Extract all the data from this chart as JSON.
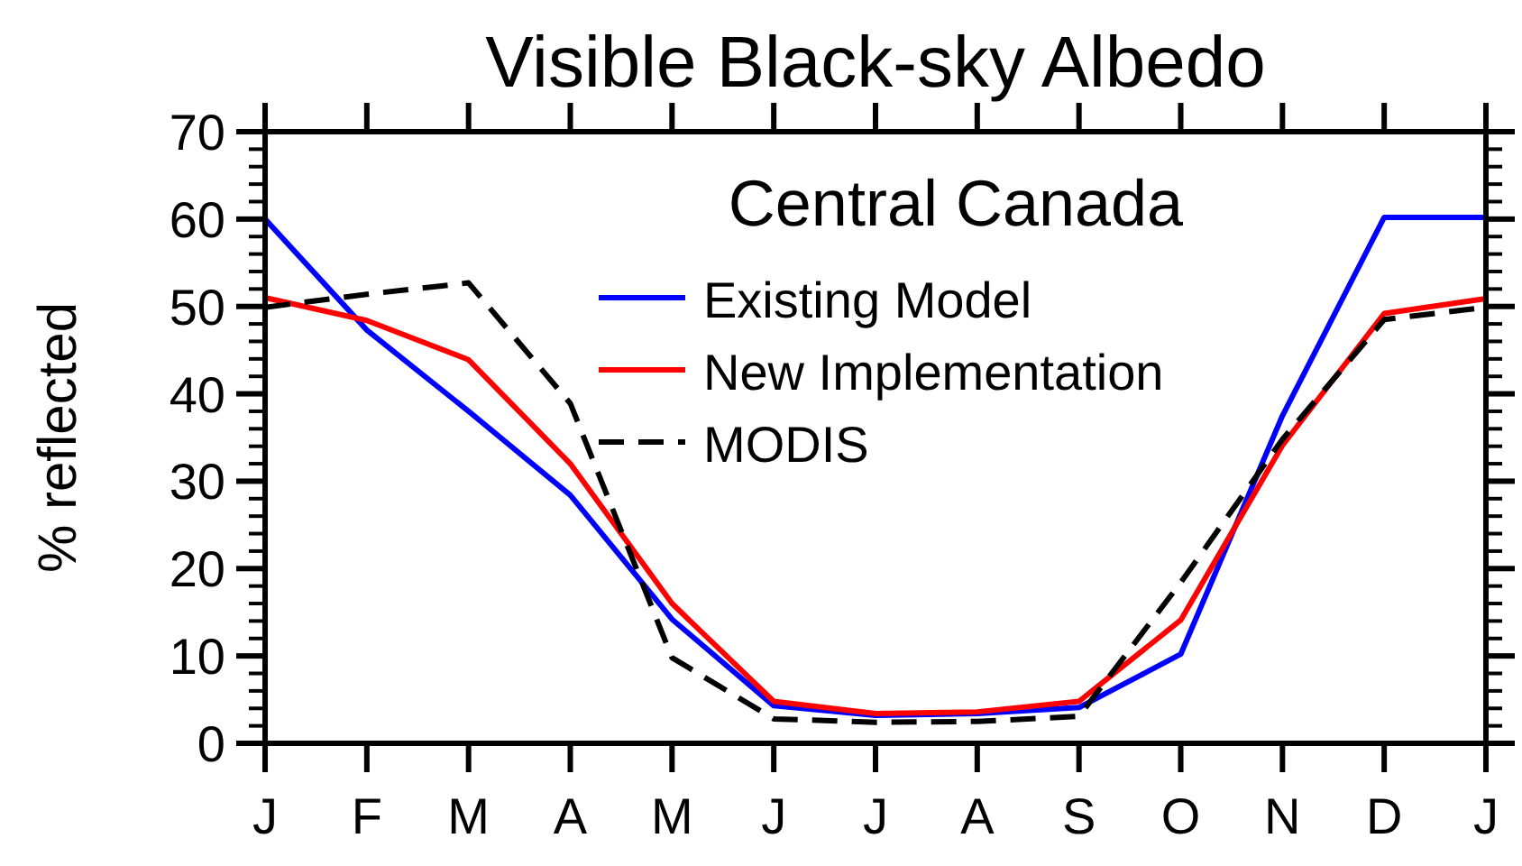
{
  "chart_data": {
    "type": "line",
    "title": "Visible Black-sky Albedo",
    "subtitle": "Central Canada",
    "ylabel": "% reflected",
    "categories": [
      "J",
      "F",
      "M",
      "A",
      "M",
      "J",
      "J",
      "A",
      "S",
      "O",
      "N",
      "D",
      "J"
    ],
    "ylim": [
      0,
      70
    ],
    "yticks": [
      0,
      10,
      20,
      30,
      40,
      50,
      60,
      70
    ],
    "grid": false,
    "legend": "top right",
    "series": [
      {
        "name": "Existing Model",
        "color": "#0000ff",
        "line_style": "solid",
        "values": [
          60,
          47.3,
          38,
          28.4,
          14.2,
          4.3,
          3.2,
          3.4,
          4.1,
          10.2,
          37.5,
          60.2,
          60.2
        ]
      },
      {
        "name": "New Implementation",
        "color": "#ff0000",
        "line_style": "solid",
        "values": [
          51,
          48.4,
          43.9,
          32,
          16,
          4.8,
          3.4,
          3.6,
          4.8,
          14.1,
          34.1,
          49.2,
          50.9
        ]
      },
      {
        "name": "MODIS",
        "color": "#000000",
        "line_style": "dashed",
        "values": [
          49.9,
          51.4,
          52.7,
          38.9,
          9.8,
          2.8,
          2.4,
          2.5,
          3.1,
          18.4,
          34.8,
          48.5,
          49.9
        ]
      }
    ]
  }
}
